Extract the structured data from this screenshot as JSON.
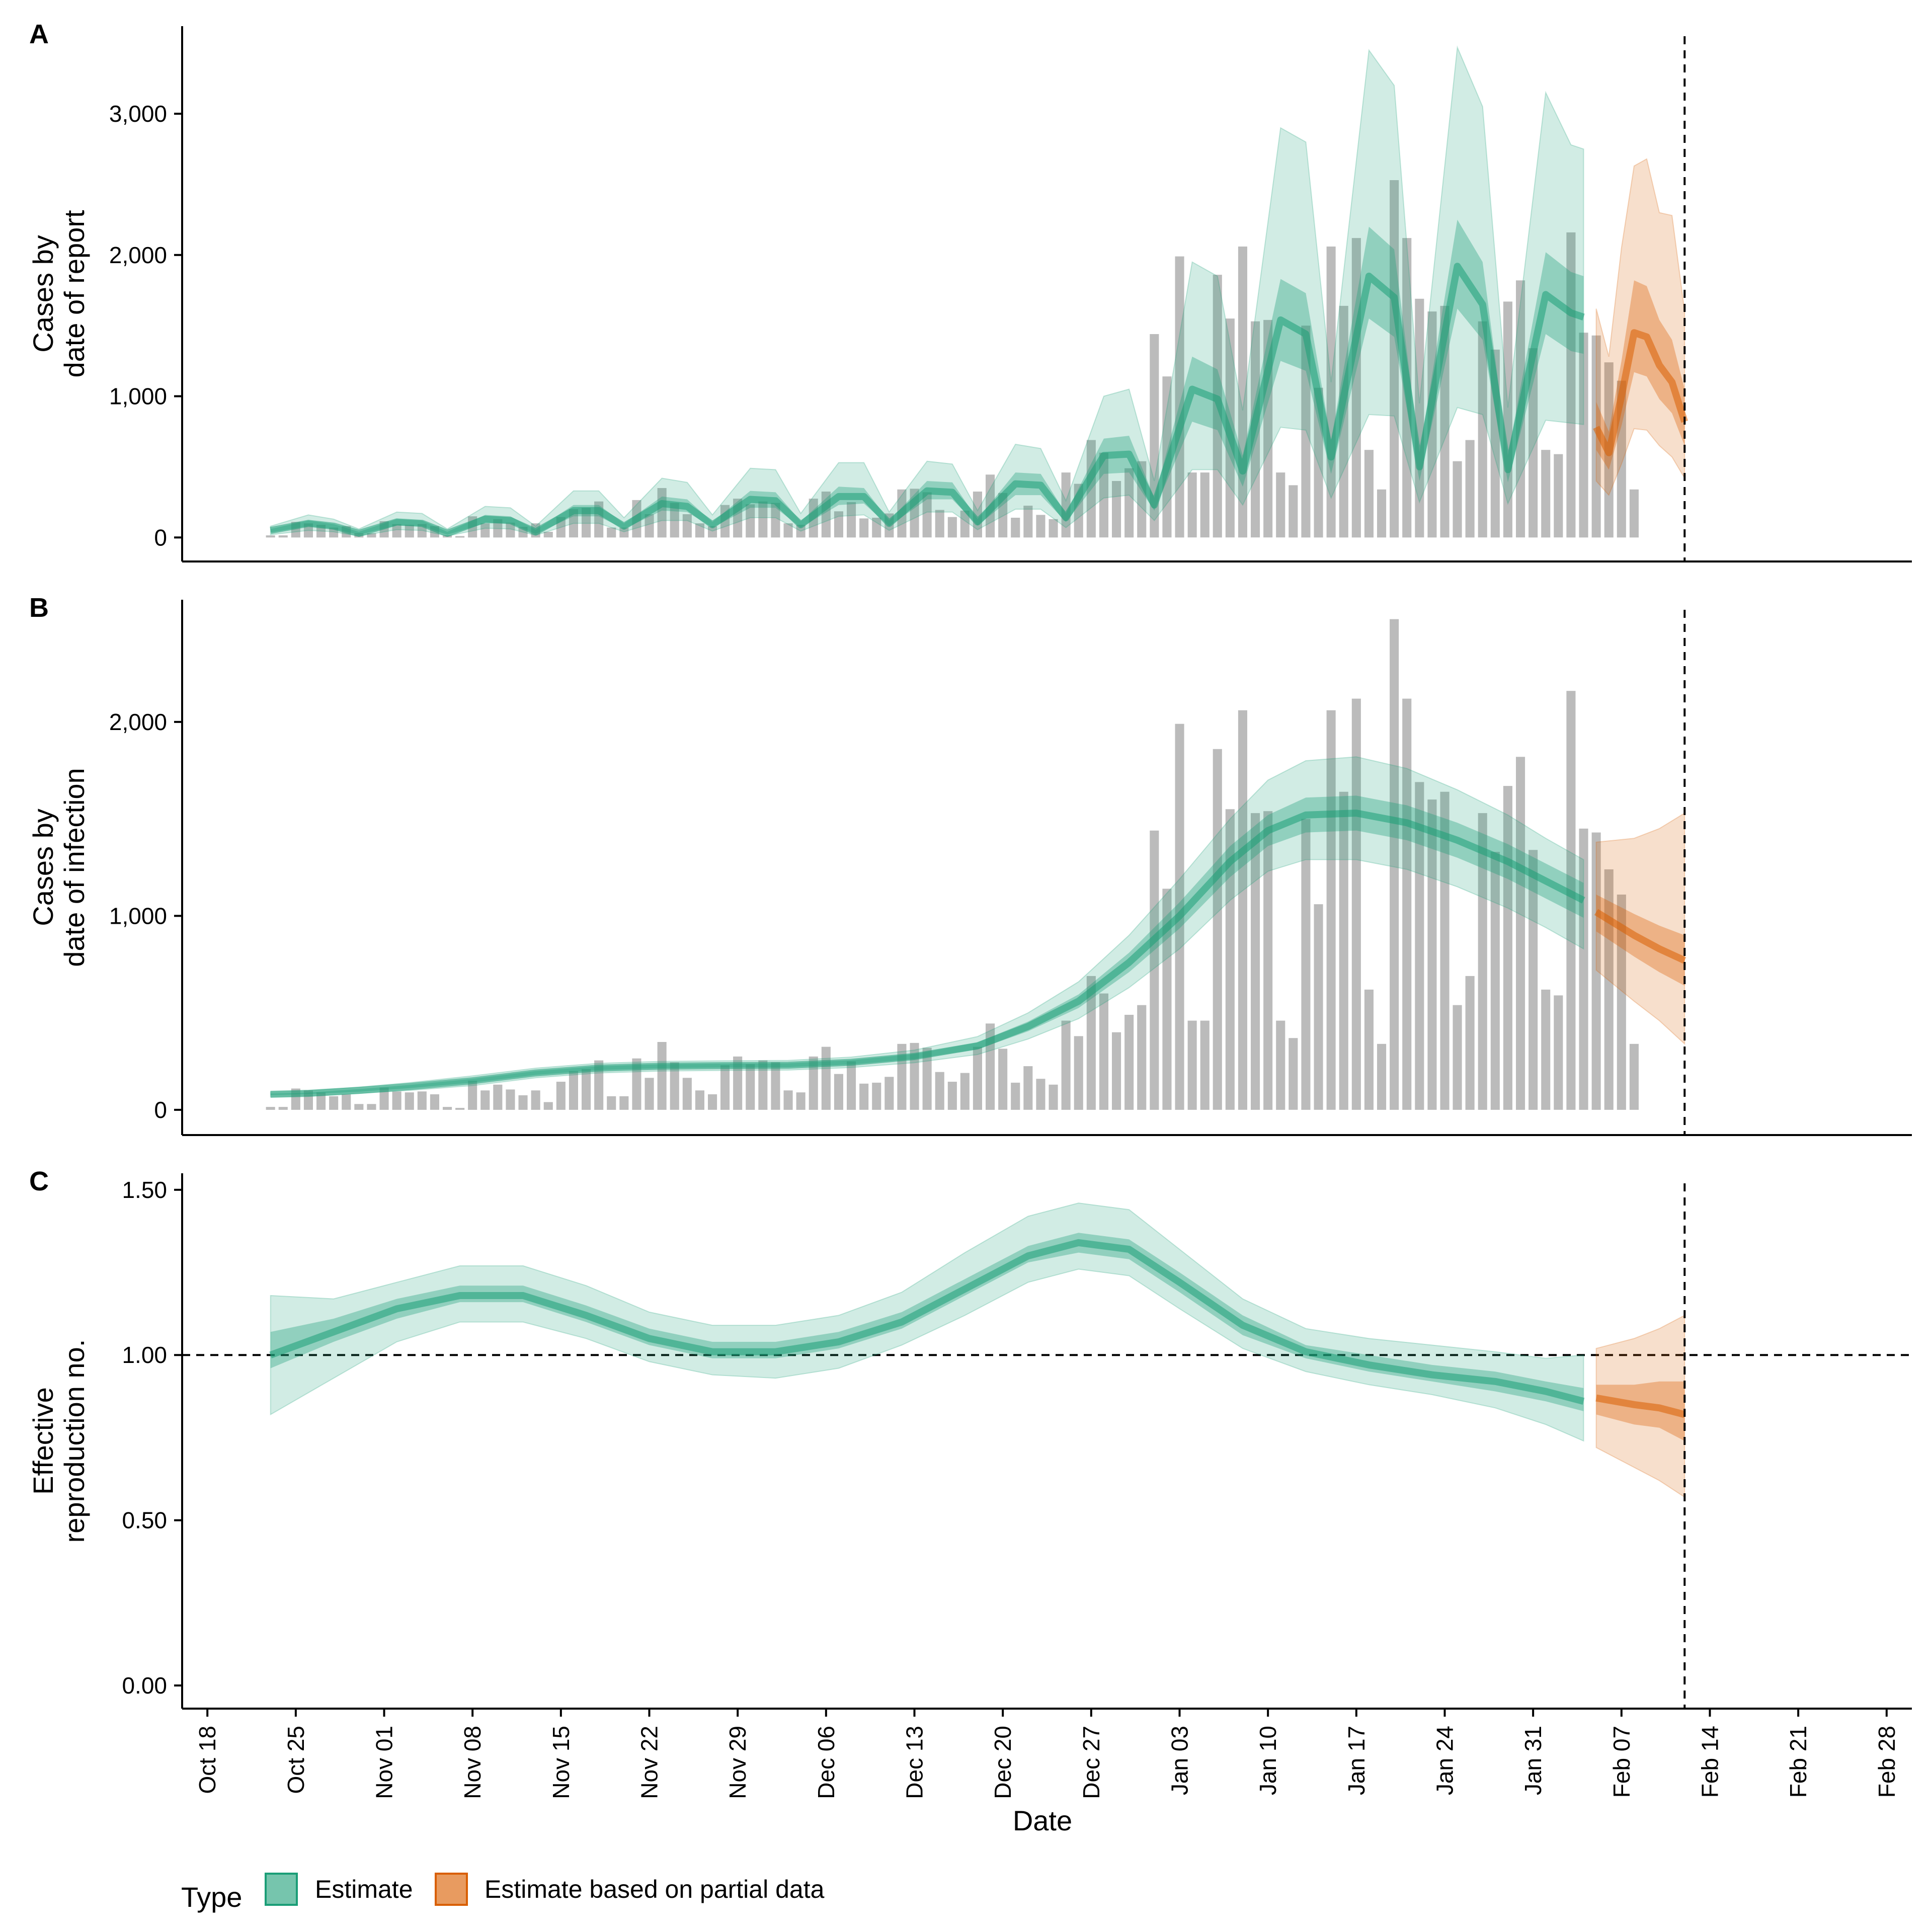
{
  "colors": {
    "estimate": "#1b9e77",
    "partial": "#d95f02",
    "bars": "#9e9e9e"
  },
  "chart_data": {
    "type": "bar",
    "panel_tags": [
      "A",
      "B",
      "C"
    ],
    "x_axis": {
      "title": "Date",
      "range": [
        "2020-10-16",
        "2021-03-02"
      ],
      "ticks": [
        {
          "date": "2020-10-18",
          "label": "Oct 18"
        },
        {
          "date": "2020-10-25",
          "label": "Oct 25"
        },
        {
          "date": "2020-11-01",
          "label": "Nov 01"
        },
        {
          "date": "2020-11-08",
          "label": "Nov 08"
        },
        {
          "date": "2020-11-15",
          "label": "Nov 15"
        },
        {
          "date": "2020-11-22",
          "label": "Nov 22"
        },
        {
          "date": "2020-11-29",
          "label": "Nov 29"
        },
        {
          "date": "2020-12-06",
          "label": "Dec 06"
        },
        {
          "date": "2020-12-13",
          "label": "Dec 13"
        },
        {
          "date": "2020-12-20",
          "label": "Dec 20"
        },
        {
          "date": "2020-12-27",
          "label": "Dec 27"
        },
        {
          "date": "2021-01-03",
          "label": "Jan 03"
        },
        {
          "date": "2021-01-10",
          "label": "Jan 10"
        },
        {
          "date": "2021-01-17",
          "label": "Jan 17"
        },
        {
          "date": "2021-01-24",
          "label": "Jan 24"
        },
        {
          "date": "2021-01-31",
          "label": "Jan 31"
        },
        {
          "date": "2021-02-07",
          "label": "Feb 07"
        },
        {
          "date": "2021-02-14",
          "label": "Feb 14"
        },
        {
          "date": "2021-02-21",
          "label": "Feb 21"
        },
        {
          "date": "2021-02-28",
          "label": "Feb 28"
        }
      ]
    },
    "cutoff_date": "2021-02-12",
    "partial_start_date": "2021-02-05",
    "bars_start_date": "2020-10-23",
    "observed_cases": [
      15,
      15,
      110,
      100,
      90,
      70,
      80,
      30,
      30,
      115,
      95,
      90,
      95,
      80,
      15,
      10,
      150,
      100,
      130,
      105,
      75,
      100,
      40,
      145,
      200,
      210,
      255,
      70,
      70,
      265,
      165,
      350,
      245,
      165,
      100,
      80,
      230,
      275,
      235,
      255,
      245,
      100,
      90,
      275,
      325,
      185,
      250,
      135,
      140,
      170,
      340,
      345,
      320,
      195,
      145,
      190,
      325,
      445,
      315,
      140,
      225,
      160,
      130,
      460,
      380,
      690,
      600,
      400,
      490,
      540,
      1440,
      1140,
      1990,
      460,
      460,
      1860,
      1550,
      2060,
      1530,
      1540,
      460,
      370,
      1500,
      1060,
      2060,
      1640,
      2120,
      620,
      340,
      2530,
      2120,
      1690,
      1600,
      1640,
      540,
      690,
      1530,
      1330,
      1670,
      1820,
      1340,
      620,
      590,
      2160,
      1450,
      1430,
      1240,
      1110,
      340
    ],
    "panels": [
      {
        "tag": "A",
        "ylabel": [
          "Cases by",
          "date of report"
        ],
        "ylim": [
          -170,
          3620
        ],
        "yticks": [
          {
            "value": 0,
            "label": "0"
          },
          {
            "value": 1000,
            "label": "1,000"
          },
          {
            "value": 2000,
            "label": "2,000"
          },
          {
            "value": 3000,
            "label": "3,000"
          }
        ],
        "estimate": {
          "dates": [
            "2020-10-23",
            "2020-10-26",
            "2020-10-28",
            "2020-10-30",
            "2020-11-02",
            "2020-11-04",
            "2020-11-06",
            "2020-11-09",
            "2020-11-11",
            "2020-11-13",
            "2020-11-16",
            "2020-11-18",
            "2020-11-20",
            "2020-11-23",
            "2020-11-25",
            "2020-11-27",
            "2020-11-30",
            "2020-12-02",
            "2020-12-04",
            "2020-12-07",
            "2020-12-09",
            "2020-12-11",
            "2020-12-14",
            "2020-12-16",
            "2020-12-18",
            "2020-12-21",
            "2020-12-23",
            "2020-12-25",
            "2020-12-28",
            "2020-12-30",
            "2021-01-01",
            "2021-01-04",
            "2021-01-06",
            "2021-01-08",
            "2021-01-11",
            "2021-01-13",
            "2021-01-15",
            "2021-01-18",
            "2021-01-20",
            "2021-01-22",
            "2021-01-25",
            "2021-01-27",
            "2021-01-29",
            "2021-02-01",
            "2021-02-03",
            "2021-02-04"
          ],
          "median": [
            50,
            100,
            80,
            30,
            110,
            100,
            30,
            130,
            120,
            40,
            190,
            190,
            80,
            240,
            220,
            90,
            270,
            260,
            90,
            290,
            290,
            100,
            330,
            320,
            110,
            380,
            370,
            140,
            580,
            590,
            230,
            1050,
            980,
            470,
            1540,
            1440,
            570,
            1850,
            1700,
            500,
            1920,
            1650,
            480,
            1720,
            1590,
            1560
          ],
          "lower50": [
            35,
            80,
            60,
            20,
            85,
            80,
            20,
            100,
            100,
            25,
            150,
            150,
            60,
            190,
            180,
            70,
            210,
            210,
            70,
            230,
            240,
            80,
            270,
            270,
            85,
            300,
            300,
            110,
            450,
            460,
            190,
            820,
            760,
            360,
            1250,
            1180,
            450,
            1550,
            1420,
            400,
            1620,
            1400,
            390,
            1440,
            1320,
            1300
          ],
          "upper50": [
            60,
            120,
            95,
            40,
            130,
            120,
            40,
            160,
            150,
            55,
            230,
            230,
            100,
            290,
            270,
            110,
            330,
            320,
            115,
            360,
            350,
            120,
            400,
            390,
            130,
            460,
            450,
            170,
            700,
            720,
            280,
            1280,
            1190,
            580,
            1830,
            1730,
            690,
            2200,
            2040,
            600,
            2250,
            1950,
            580,
            2020,
            1880,
            1850
          ],
          "lower90": [
            20,
            50,
            40,
            10,
            55,
            50,
            10,
            65,
            60,
            15,
            100,
            100,
            40,
            120,
            120,
            45,
            140,
            140,
            45,
            150,
            160,
            50,
            180,
            180,
            55,
            200,
            200,
            70,
            280,
            300,
            120,
            480,
            480,
            230,
            780,
            760,
            280,
            870,
            860,
            250,
            920,
            870,
            240,
            830,
            810,
            800
          ],
          "upper90": [
            80,
            160,
            130,
            60,
            180,
            170,
            60,
            220,
            210,
            80,
            330,
            330,
            140,
            420,
            390,
            160,
            490,
            480,
            170,
            530,
            530,
            180,
            540,
            520,
            190,
            660,
            630,
            260,
            1000,
            1050,
            400,
            1950,
            1850,
            900,
            2900,
            2800,
            1100,
            3450,
            3200,
            950,
            3470,
            3050,
            920,
            3150,
            2780,
            2750
          ]
        },
        "partial": {
          "dates": [
            "2021-02-05",
            "2021-02-06",
            "2021-02-07",
            "2021-02-08",
            "2021-02-09",
            "2021-02-10",
            "2021-02-11",
            "2021-02-12"
          ],
          "median": [
            780,
            600,
            1000,
            1450,
            1420,
            1220,
            1100,
            820
          ],
          "lower50": [
            620,
            480,
            790,
            1170,
            1140,
            980,
            880,
            650
          ],
          "upper50": [
            960,
            750,
            1250,
            1820,
            1780,
            1540,
            1400,
            1050
          ],
          "lower90": [
            400,
            300,
            520,
            770,
            760,
            650,
            570,
            420
          ],
          "upper90": [
            1620,
            1280,
            2050,
            2630,
            2680,
            2300,
            2280,
            1600
          ]
        }
      },
      {
        "tag": "B",
        "ylabel": [
          "Cases by",
          "date of infection"
        ],
        "ylim": [
          -130,
          2630
        ],
        "yticks": [
          {
            "value": 0,
            "label": "0"
          },
          {
            "value": 1000,
            "label": "1,000"
          },
          {
            "value": 2000,
            "label": "2,000"
          }
        ],
        "estimate": {
          "dates": [
            "2020-10-23",
            "2020-10-26",
            "2020-10-30",
            "2020-11-03",
            "2020-11-08",
            "2020-11-13",
            "2020-11-18",
            "2020-11-23",
            "2020-11-28",
            "2020-12-03",
            "2020-12-08",
            "2020-12-13",
            "2020-12-18",
            "2020-12-22",
            "2020-12-26",
            "2020-12-30",
            "2021-01-03",
            "2021-01-07",
            "2021-01-10",
            "2021-01-13",
            "2021-01-17",
            "2021-01-21",
            "2021-01-25",
            "2021-01-29",
            "2021-02-01",
            "2021-02-04"
          ],
          "median": [
            80,
            85,
            100,
            120,
            150,
            190,
            215,
            225,
            228,
            230,
            245,
            275,
            330,
            430,
            560,
            760,
            1000,
            1280,
            1440,
            1520,
            1530,
            1480,
            1390,
            1280,
            1180,
            1080
          ],
          "lower50": [
            75,
            80,
            93,
            112,
            140,
            180,
            205,
            215,
            218,
            220,
            234,
            262,
            312,
            405,
            525,
            710,
            935,
            1200,
            1360,
            1430,
            1440,
            1390,
            1300,
            1190,
            1090,
            990
          ],
          "upper50": [
            85,
            90,
            107,
            128,
            160,
            200,
            225,
            235,
            238,
            240,
            256,
            288,
            348,
            455,
            595,
            810,
            1070,
            1360,
            1520,
            1610,
            1620,
            1570,
            1480,
            1370,
            1270,
            1170
          ],
          "lower90": [
            68,
            72,
            85,
            100,
            125,
            165,
            190,
            200,
            203,
            205,
            218,
            243,
            285,
            365,
            470,
            630,
            830,
            1080,
            1230,
            1290,
            1290,
            1240,
            1150,
            1040,
            940,
            830
          ],
          "upper90": [
            92,
            98,
            117,
            140,
            175,
            215,
            240,
            250,
            253,
            255,
            272,
            308,
            378,
            500,
            660,
            900,
            1190,
            1500,
            1700,
            1800,
            1820,
            1760,
            1650,
            1520,
            1400,
            1290
          ]
        },
        "partial": {
          "dates": [
            "2021-02-05",
            "2021-02-08",
            "2021-02-10",
            "2021-02-12"
          ],
          "median": [
            1020,
            900,
            830,
            770
          ],
          "lower50": [
            920,
            790,
            710,
            640
          ],
          "upper50": [
            1110,
            1010,
            950,
            900
          ],
          "lower90": [
            720,
            560,
            460,
            340
          ],
          "upper90": [
            1380,
            1400,
            1450,
            1530
          ]
        }
      },
      {
        "tag": "C",
        "ylabel": [
          "Effective",
          "reproduction no."
        ],
        "ylim": [
          -0.07,
          1.55
        ],
        "yticks": [
          {
            "value": 0,
            "label": "0.00"
          },
          {
            "value": 0.5,
            "label": "0.50"
          },
          {
            "value": 1,
            "label": "1.00"
          },
          {
            "value": 1.5,
            "label": "1.50"
          }
        ],
        "reference_line": 1.0,
        "estimate": {
          "dates": [
            "2020-10-23",
            "2020-10-28",
            "2020-11-02",
            "2020-11-07",
            "2020-11-12",
            "2020-11-17",
            "2020-11-22",
            "2020-11-27",
            "2020-12-02",
            "2020-12-07",
            "2020-12-12",
            "2020-12-17",
            "2020-12-22",
            "2020-12-26",
            "2020-12-30",
            "2021-01-03",
            "2021-01-08",
            "2021-01-13",
            "2021-01-18",
            "2021-01-23",
            "2021-01-28",
            "2021-02-01",
            "2021-02-04"
          ],
          "median": [
            1.0,
            1.07,
            1.14,
            1.18,
            1.18,
            1.12,
            1.05,
            1.01,
            1.01,
            1.04,
            1.1,
            1.2,
            1.3,
            1.34,
            1.32,
            1.22,
            1.09,
            1.01,
            0.97,
            0.94,
            0.92,
            0.89,
            0.86
          ],
          "lower50": [
            0.96,
            1.04,
            1.11,
            1.16,
            1.16,
            1.1,
            1.03,
            0.99,
            0.99,
            1.02,
            1.08,
            1.18,
            1.28,
            1.31,
            1.29,
            1.19,
            1.06,
            0.99,
            0.95,
            0.92,
            0.89,
            0.86,
            0.83
          ],
          "upper50": [
            1.07,
            1.11,
            1.17,
            1.21,
            1.21,
            1.15,
            1.08,
            1.04,
            1.04,
            1.07,
            1.13,
            1.23,
            1.33,
            1.37,
            1.35,
            1.25,
            1.12,
            1.03,
            1.0,
            0.97,
            0.95,
            0.92,
            0.9
          ],
          "lower90": [
            0.82,
            0.93,
            1.04,
            1.1,
            1.1,
            1.05,
            0.98,
            0.94,
            0.93,
            0.96,
            1.03,
            1.12,
            1.22,
            1.26,
            1.24,
            1.14,
            1.02,
            0.95,
            0.91,
            0.88,
            0.84,
            0.79,
            0.74
          ],
          "upper90": [
            1.18,
            1.17,
            1.22,
            1.27,
            1.27,
            1.21,
            1.13,
            1.09,
            1.09,
            1.12,
            1.19,
            1.31,
            1.42,
            1.46,
            1.44,
            1.32,
            1.17,
            1.08,
            1.05,
            1.03,
            1.01,
            0.99,
            1.0
          ]
        },
        "partial": {
          "dates": [
            "2021-02-05",
            "2021-02-08",
            "2021-02-10",
            "2021-02-12"
          ],
          "median": [
            0.87,
            0.85,
            0.84,
            0.82
          ],
          "lower50": [
            0.82,
            0.79,
            0.78,
            0.74
          ],
          "upper50": [
            0.91,
            0.91,
            0.92,
            0.92
          ],
          "lower90": [
            0.72,
            0.66,
            0.62,
            0.57
          ],
          "upper90": [
            1.02,
            1.05,
            1.08,
            1.12
          ]
        }
      }
    ],
    "legend": {
      "title": "Type",
      "position": "bottom-left",
      "items": [
        {
          "label": "Estimate",
          "key": "estimate"
        },
        {
          "label": "Estimate based on partial data",
          "key": "partial"
        }
      ]
    }
  }
}
